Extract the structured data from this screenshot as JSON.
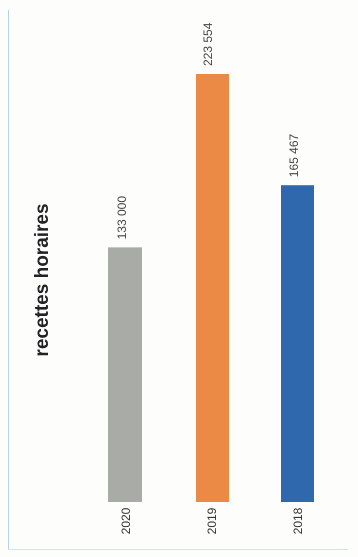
{
  "chart_data": {
    "type": "bar",
    "title": "recettes horaires",
    "categories": [
      "2020",
      "2019",
      "2018"
    ],
    "values": [
      133000,
      223554,
      165467
    ],
    "value_labels": [
      "133 000",
      "223 554",
      "165 467"
    ],
    "colors": [
      "#a9aba7",
      "#ea8a45",
      "#2f68ad"
    ],
    "ylim": [
      0,
      223554
    ],
    "xlabel": "",
    "ylabel": "",
    "grid": false,
    "legend": "none"
  }
}
